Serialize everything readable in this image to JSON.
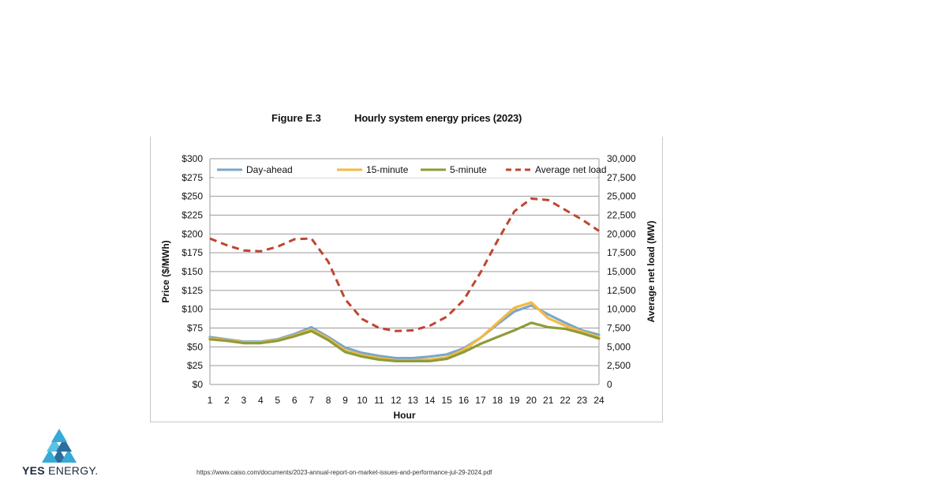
{
  "figure": {
    "number": "Figure E.3",
    "title": "Hourly system energy prices (2023)"
  },
  "chart_data": {
    "type": "line",
    "title": "Hourly system energy prices (2023)",
    "xlabel": "Hour",
    "ylabel": "Price ($/MWh)",
    "y2label": "Average net load (MW)",
    "x": [
      1,
      2,
      3,
      4,
      5,
      6,
      7,
      8,
      9,
      10,
      11,
      12,
      13,
      14,
      15,
      16,
      17,
      18,
      19,
      20,
      21,
      22,
      23,
      24
    ],
    "ylim": [
      0,
      300
    ],
    "y2lim": [
      0,
      30000
    ],
    "yticks": [
      "$0",
      "$25",
      "$50",
      "$75",
      "$100",
      "$125",
      "$150",
      "$175",
      "$200",
      "$225",
      "$250",
      "$275",
      "$300"
    ],
    "y2ticks": [
      "0",
      "2,500",
      "5,000",
      "7,500",
      "10,000",
      "12,500",
      "15,000",
      "17,500",
      "20,000",
      "22,500",
      "25,000",
      "27,500",
      "30,000"
    ],
    "grid": true,
    "legend_position": "top",
    "series": [
      {
        "name": "Day-ahead",
        "axis": "left",
        "color": "#7ba7c9",
        "style": "solid",
        "values": [
          63,
          60,
          57,
          57,
          60,
          67,
          76,
          63,
          49,
          42,
          38,
          35,
          35,
          37,
          40,
          48,
          62,
          80,
          97,
          105,
          93,
          82,
          72,
          66
        ]
      },
      {
        "name": "15-minute",
        "axis": "left",
        "color": "#f5b942",
        "style": "solid",
        "values": [
          61,
          59,
          56,
          56,
          59,
          65,
          73,
          61,
          45,
          39,
          35,
          32,
          32,
          33,
          36,
          46,
          62,
          82,
          102,
          109,
          88,
          78,
          70,
          63
        ]
      },
      {
        "name": "5-minute",
        "axis": "left",
        "color": "#8f9b3a",
        "style": "solid",
        "values": [
          60,
          58,
          55,
          55,
          58,
          64,
          71,
          59,
          43,
          37,
          33,
          31,
          31,
          31,
          34,
          43,
          54,
          63,
          72,
          82,
          76,
          74,
          68,
          61
        ]
      },
      {
        "name": "Average net load",
        "axis": "right",
        "color": "#c0442f",
        "style": "dashed",
        "values": [
          19400,
          18500,
          17800,
          17700,
          18300,
          19300,
          19400,
          16300,
          11300,
          8700,
          7500,
          7100,
          7200,
          7800,
          9000,
          11200,
          14900,
          19100,
          23000,
          24700,
          24500,
          23200,
          21900,
          20400
        ]
      }
    ]
  },
  "footer": {
    "logo_bold": "YES",
    "logo_rest": " ENERGY.",
    "source_url": "https://www.caiso.com/documents/2023-annual-report-on-market-issues-and-performance-jul-29-2024.pdf"
  }
}
